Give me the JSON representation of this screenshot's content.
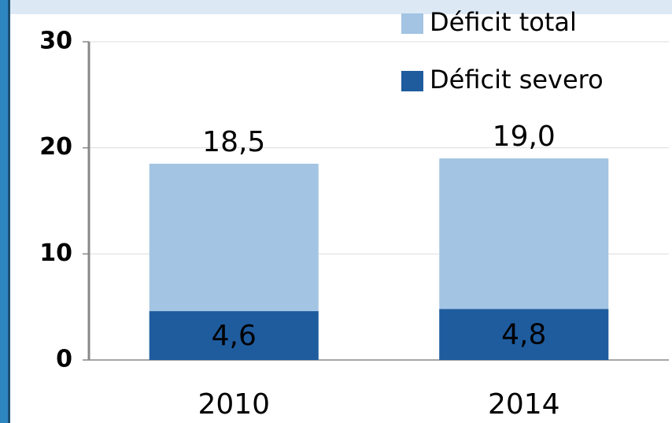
{
  "chart_data": {
    "type": "bar",
    "categories": [
      "2010",
      "2014"
    ],
    "series": [
      {
        "name": "Déficit total",
        "color": "#a3c4e3",
        "values": [
          18.5,
          19.0
        ],
        "value_labels": [
          "18,5",
          "19,0"
        ]
      },
      {
        "name": "Déficit severo",
        "color": "#1f5c9e",
        "values": [
          4.6,
          4.8
        ],
        "value_labels": [
          "4,6",
          "4,8"
        ]
      }
    ],
    "ylim": [
      0,
      30
    ],
    "yticks": [
      0,
      10,
      20,
      30
    ],
    "grid": true,
    "legend": "top-right"
  }
}
